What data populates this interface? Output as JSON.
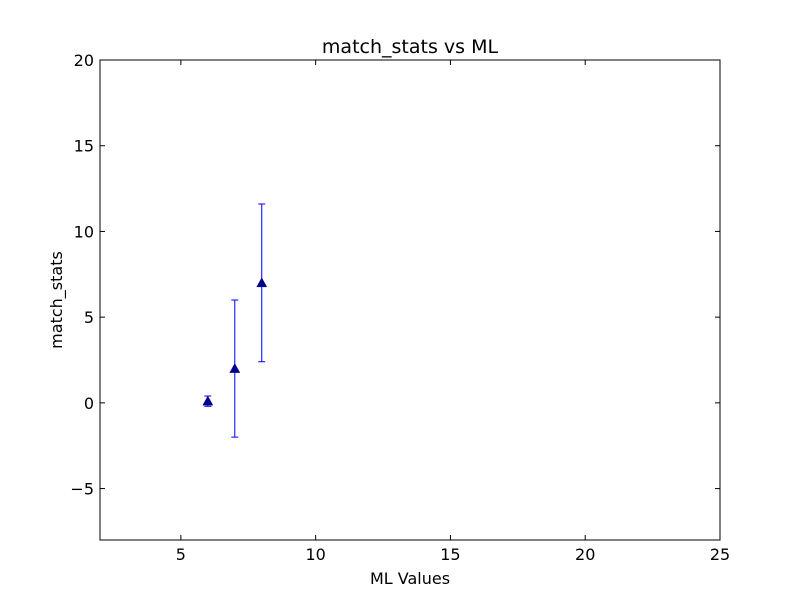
{
  "chart_data": {
    "type": "scatter",
    "title": "match_stats vs ML",
    "xlabel": "ML Values",
    "ylabel": "match_stats",
    "xlim": [
      2,
      25
    ],
    "ylim": [
      -8,
      20
    ],
    "xticks": [
      5,
      10,
      15,
      20,
      25
    ],
    "xtick_labels": [
      "5",
      "10",
      "15",
      "20",
      "25"
    ],
    "yticks": [
      -5,
      0,
      5,
      10,
      15,
      20
    ],
    "ytick_labels": [
      "−5",
      "0",
      "5",
      "10",
      "15",
      "20"
    ],
    "grid": false,
    "marker": "triangle-up",
    "series": [
      {
        "x": [
          6,
          7,
          8
        ],
        "y": [
          0.1,
          2.0,
          7.0
        ],
        "yerr": [
          0.3,
          4.0,
          4.6
        ],
        "color": "#0000ff",
        "marker_color": "#00008b"
      }
    ]
  }
}
